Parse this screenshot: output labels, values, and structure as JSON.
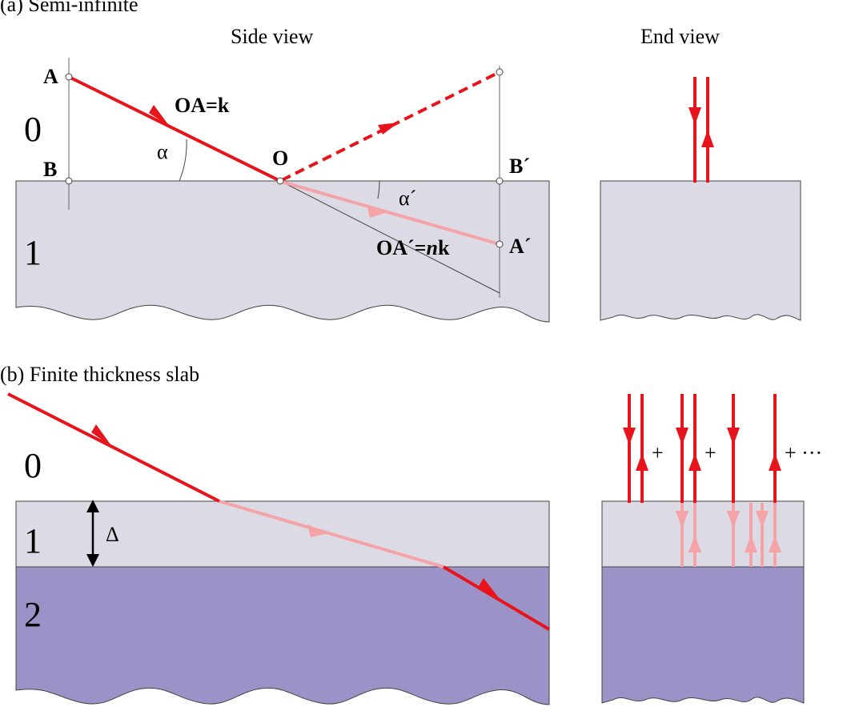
{
  "figure": {
    "panel_a_caption": "(a) Semi-infinite",
    "panel_b_caption": "(b) Finite thickness slab",
    "side_view_title": "Side view",
    "end_view_title": "End view",
    "label_A": "A",
    "label_B": "B",
    "label_O": "O",
    "label_Bp": "B´",
    "label_Ap": "A´",
    "label_OA": "OA=k",
    "label_OAp_prefix": "OA´=",
    "label_OAp_n": "n",
    "label_OAp_k": "k",
    "label_alpha": "α",
    "label_alphap": "α´",
    "medium_a_0": "0",
    "medium_a_1": "1",
    "medium_b_0": "0",
    "medium_b_1": "1",
    "medium_b_2": "2",
    "label_delta": "Δ",
    "plus_1": "+",
    "plus_2": "+",
    "plus_3": "+ ···"
  },
  "colors": {
    "ray": "#e8141c",
    "ray_faint": "#f4a3a6",
    "medium_1": "#dcdae4",
    "medium_2": "#9b93c7",
    "outline": "#444444"
  }
}
